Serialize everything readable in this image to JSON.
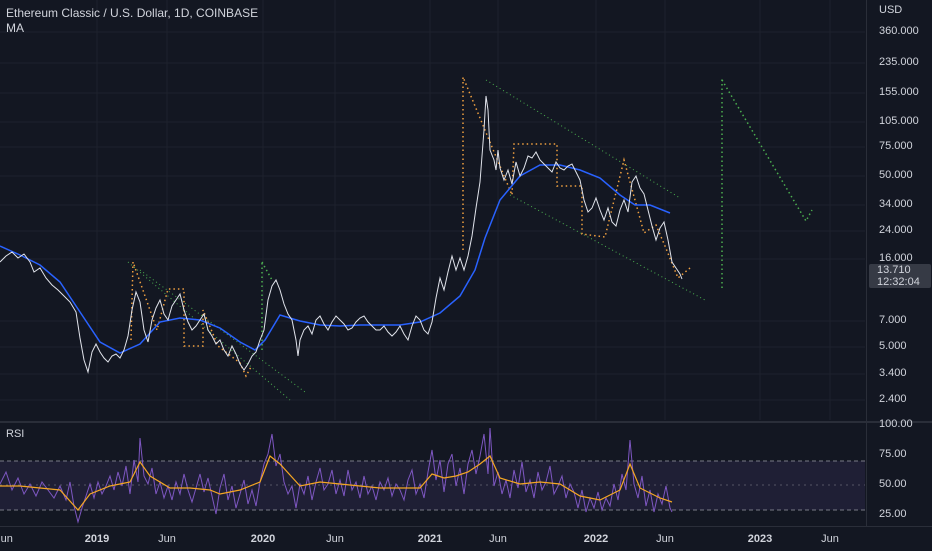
{
  "header": {
    "title": "Ethereum Classic / U.S. Dollar, 1D, COINBASE",
    "indicator": "MA"
  },
  "price_axis": {
    "currency": "USD",
    "ticks": [
      "360.000",
      "235.000",
      "155.000",
      "105.000",
      "75.000",
      "50.000",
      "34.000",
      "24.000",
      "16.000",
      "7.000",
      "5.000",
      "3.400",
      "2.400"
    ],
    "current_price": "13.710",
    "countdown": "12:32:04"
  },
  "rsi": {
    "label": "RSI",
    "ticks": [
      "100.00",
      "75.00",
      "50.00",
      "25.00"
    ]
  },
  "time_axis": {
    "ticks": [
      "Jun",
      "2019",
      "Jun",
      "2020",
      "Jun",
      "2021",
      "Jun",
      "2022",
      "Jun",
      "2023",
      "Jun"
    ]
  },
  "colors": {
    "background": "#131722",
    "price_line": "#ffffff",
    "ma_line": "#2962ff",
    "rsi_line": "#7e57c2",
    "rsi_ma": "#f5a623",
    "pattern_orange": "#f0a040",
    "pattern_green": "#43a047",
    "channel_green": "#4caf50"
  }
}
